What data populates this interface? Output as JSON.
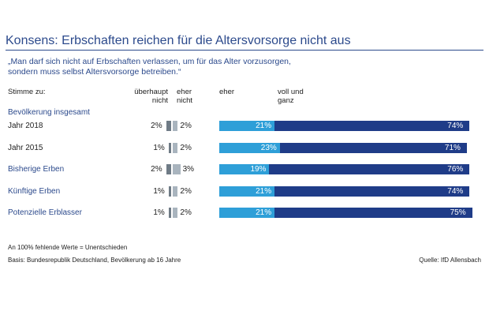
{
  "title": "Konsens: Erbschaften reichen für die Altersvorsorge nicht aus",
  "quote": "„Man darf sich nicht auf Erbschaften verlassen, um für das Alter vorzusorgen,\nsondern muss selbst Altersvorsorge betreiben.“",
  "headers": {
    "stimme_zu": "Stimme zu:",
    "ueberhaupt_nicht": "überhaupt\nnicht",
    "eher_nicht": "eher\nnicht",
    "eher": "eher",
    "voll_und_ganz": "voll und\nganz"
  },
  "group_label": "Bevölkerung insgesamt",
  "footnotes": {
    "note": "An 100% fehlende Werte = Unentschieden",
    "basis": "Basis: Bundesrepublik Deutschland, Bevölkerung ab 16 Jahre",
    "source": "Quelle: IfD Allensbach"
  },
  "colors": {
    "ueberhaupt_nicht": "#6f7b86",
    "eher_nicht": "#a9b4be",
    "eher": "#2e9fd8",
    "voll_und_ganz": "#1f3c88",
    "title": "#2c4a8c"
  },
  "chart_data": {
    "type": "bar",
    "orientation": "horizontal",
    "stacked": true,
    "categories": [
      "Jahr 2018",
      "Jahr 2015",
      "Bisherige Erben",
      "Künftige Erben",
      "Potenzielle Erblasser"
    ],
    "series": [
      {
        "name": "überhaupt nicht",
        "values": [
          2,
          1,
          2,
          1,
          1
        ]
      },
      {
        "name": "eher nicht",
        "values": [
          2,
          2,
          3,
          2,
          2
        ]
      },
      {
        "name": "eher",
        "values": [
          21,
          23,
          19,
          21,
          21
        ]
      },
      {
        "name": "voll und ganz",
        "values": [
          74,
          71,
          76,
          74,
          75
        ]
      }
    ],
    "rows": [
      {
        "label": "Jahr 2018",
        "style": "dark",
        "ueberhaupt_nicht": "2%",
        "eher_nicht": "2%",
        "eher": "21%",
        "voll": "74%"
      },
      {
        "label": "Jahr 2015",
        "style": "dark",
        "ueberhaupt_nicht": "1%",
        "eher_nicht": "2%",
        "eher": "23%",
        "voll": "71%"
      },
      {
        "label": "Bisherige Erben",
        "style": "blue",
        "ueberhaupt_nicht": "2%",
        "eher_nicht": "3%",
        "eher": "19%",
        "voll": "76%"
      },
      {
        "label": "Künftige Erben",
        "style": "blue",
        "ueberhaupt_nicht": "1%",
        "eher_nicht": "2%",
        "eher": "21%",
        "voll": "74%"
      },
      {
        "label": "Potenzielle Erblasser",
        "style": "blue",
        "ueberhaupt_nicht": "1%",
        "eher_nicht": "2%",
        "eher": "21%",
        "voll": "75%"
      }
    ]
  }
}
